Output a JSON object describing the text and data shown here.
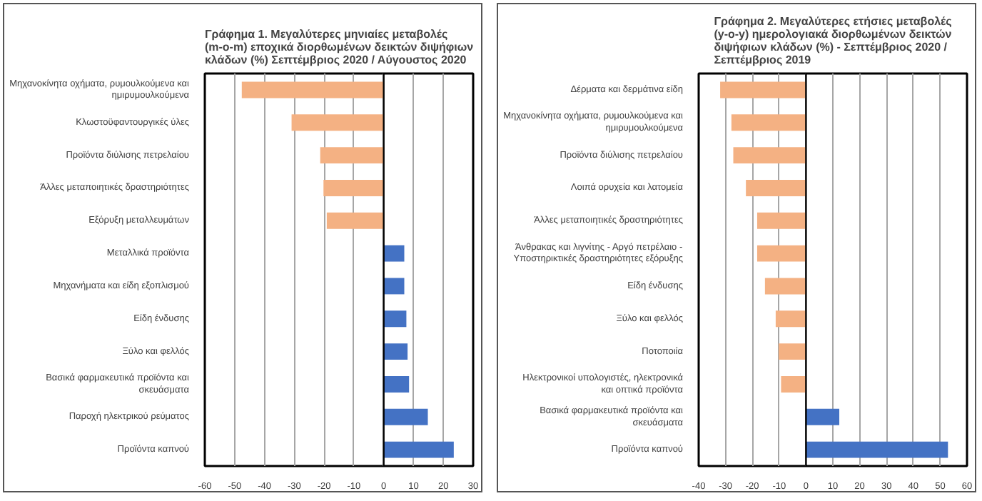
{
  "chart_data": [
    {
      "type": "bar",
      "orientation": "horizontal",
      "title": "Γράφημα 1. Μεγαλύτερες μηνιαίες μεταβολές (m-o-m) εποχικά διορθωμένων δεικτών διψήφιων κλάδων (%) Σεπτέμβριος 2020 / Αύγουστος 2020",
      "categories": [
        "Μηχανοκίνητα οχήματα, ρυμουλκούμενα και ημιρυμουλκούμενα",
        "Κλωστοϋφαντουργικές ύλες",
        "Προϊόντα διύλισης πετρελαίου",
        "Άλλες μεταποιητικές δραστηριότητες",
        "Εξόρυξη μεταλλευμάτων",
        "Μεταλλικά προϊόντα",
        "Μηχανήματα και είδη εξοπλισμού",
        "Είδη ένδυσης",
        "Ξύλο και φελλός",
        "Βασικά φαρμακευτικά προϊόντα και σκευάσματα",
        "Παροχή ηλεκτρικού ρεύματος",
        "Προϊόντα καπνού"
      ],
      "values": [
        -47.6,
        -30.9,
        -21.3,
        -20.2,
        -19.1,
        6.9,
        6.9,
        7.6,
        8.0,
        8.5,
        14.8,
        23.5
      ],
      "colors": [
        "#f4b183",
        "#f4b183",
        "#f4b183",
        "#f4b183",
        "#f4b183",
        "#4472c4",
        "#4472c4",
        "#4472c4",
        "#4472c4",
        "#4472c4",
        "#4472c4",
        "#4472c4"
      ],
      "xlim": [
        -60,
        30
      ],
      "xticks": [
        -60,
        -50,
        -40,
        -30,
        -20,
        -10,
        0,
        10,
        20,
        30
      ],
      "grid": "x"
    },
    {
      "type": "bar",
      "orientation": "horizontal",
      "title": "Γράφημα 2. Μεγαλύτερες ετήσιες μεταβολές (y-o-y) ημερολογιακά διορθωμένων δεικτών διψήφιων κλάδων (%) - Σεπτέμβριος 2020 / Σεπτέμβριος 2019",
      "categories": [
        "Δέρματα και δερμάτινα είδη",
        "Μηχανοκίνητα οχήματα, ρυμουλκούμενα και ημιρυμουλκούμενα",
        "Προϊόντα διύλισης πετρελαίου",
        "Λοιπά ορυχεία και λατομεία",
        "Άλλες μεταποιητικές δραστηριότητες",
        "Άνθρακας και λιγνίτης - Αργό πετρέλαιο - Υποστηρικτικές δραστηριότητες εξόρυξης",
        "Είδη ένδυσης",
        "Ξύλο και φελλός",
        "Ποτοποιία",
        "Ηλεκτρονικοί υπολογιστές, ηλεκτρονικά και οπτικά προϊόντα",
        "Βασικά φαρμακευτικά προϊόντα και σκευάσματα",
        "Προϊόντα καπνού"
      ],
      "values": [
        -32.0,
        -27.8,
        -27.1,
        -22.4,
        -18.2,
        -18.2,
        -15.3,
        -11.3,
        -10.2,
        -9.3,
        12.4,
        52.9
      ],
      "colors": [
        "#f4b183",
        "#f4b183",
        "#f4b183",
        "#f4b183",
        "#f4b183",
        "#f4b183",
        "#f4b183",
        "#f4b183",
        "#f4b183",
        "#f4b183",
        "#4472c4",
        "#4472c4"
      ],
      "xlim": [
        -40,
        60
      ],
      "xticks": [
        -40,
        -30,
        -20,
        -10,
        0,
        10,
        20,
        30,
        40,
        50,
        60
      ],
      "grid": "x"
    }
  ]
}
